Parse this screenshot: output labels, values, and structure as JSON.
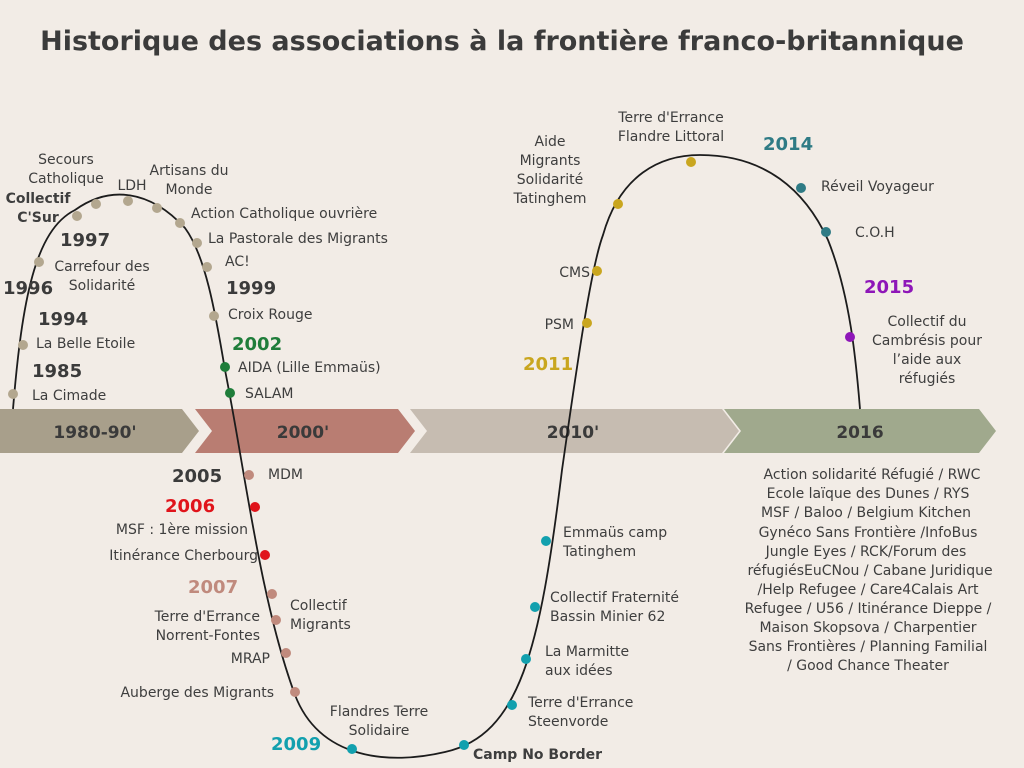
{
  "title": "Historique des associations à la frontière franco-britannique",
  "colors": {
    "bg": "#f2ece6",
    "eighties": "#a89f8b",
    "twothousand": "#b97d72",
    "twentyten": "#c6bcb1",
    "sixteen": "#a0a98d",
    "beige_dot": "#b3a78f",
    "green_dot": "#1f7d3a",
    "pink_dot": "#c08a7d",
    "red_dot": "#e0141b",
    "teal_dot": "#12a0ae",
    "gold_dot": "#c9a61f",
    "blue_dot": "#2f7b85",
    "purple_dot": "#8e16b8"
  },
  "bands": [
    "1980-90'",
    "2000'",
    "2010'",
    "2016"
  ],
  "years": {
    "y1985": "1985",
    "y1994": "1994",
    "y1996": "1996",
    "y1997": "1997",
    "y1999": "1999",
    "y2002": "2002",
    "y2005": "2005",
    "y2006": "2006",
    "y2007": "2007",
    "y2009": "2009",
    "y2011": "2011",
    "y2014": "2014",
    "y2015": "2015"
  },
  "labels": {
    "cimade": "La Cimade",
    "belle_etoile": "La Belle Etoile",
    "carrefour_1": "Carrefour des",
    "carrefour_2": "Solidarité",
    "csur_1": "Collectif",
    "csur_2": "C'Sur",
    "secours_1": "Secours",
    "secours_2": "Catholique",
    "ldh": "LDH",
    "artisans_1": "Artisans du",
    "artisans_2": "Monde",
    "action_catho": "Action Catholique ouvrière",
    "pastorale": "La Pastorale des Migrants",
    "ac": "AC!",
    "croix_rouge": "Croix Rouge",
    "aida": "AIDA (Lille Emmaüs)",
    "salam": "SALAM",
    "mdm": "MDM",
    "msf": "MSF : 1ère mission",
    "itinerance_cherbourg": "Itinérance Cherbourg",
    "terre_norrent_1": "Terre d'Errance",
    "terre_norrent_2": "Norrent-Fontes",
    "collectif_migrants_1": "Collectif",
    "collectif_migrants_2": "Migrants",
    "mrap": "MRAP",
    "auberge": "Auberge des Migrants",
    "flandres_1": "Flandres Terre",
    "flandres_2": "Solidaire",
    "camp_no_border": "Camp No Border",
    "steenvorde_1": "Terre d'Errance",
    "steenvorde_2": "Steenvorde",
    "marmitte_1": "La Marmitte",
    "marmitte_2": "aux idées",
    "fraternite_1": "Collectif Fraternité",
    "fraternite_2": "Bassin Minier 62",
    "emmaus_1": "Emmaüs camp",
    "emmaus_2": "Tatinghem",
    "psm": "PSM",
    "cms": "CMS",
    "aide_1": "Aide",
    "aide_2": "Migrants",
    "aide_3": "Solidarité",
    "aide_4": "Tatinghem",
    "flandre_littoral_1": "Terre d'Errance",
    "flandre_littoral_2": "Flandre Littoral",
    "reveil": "Réveil Voyageur",
    "coh": "C.O.H",
    "cambresis_1": "Collectif du",
    "cambresis_2": "Cambrésis pour",
    "cambresis_3": "l’aide aux",
    "cambresis_4": "réfugiés"
  },
  "list_2016": [
    "Action solidarité Réfugié / RWC",
    "Ecole laïque des Dunes / RYS",
    "MSF / Baloo / Belgium Kitchen",
    "Gynéco Sans Frontière /InfoBus",
    "Jungle Eyes / RCK/Forum des",
    "réfugiésEuCNou / Cabane Juridique",
    "/Help Refugee / Care4Calais Art",
    "Refugee / U56 / Itinérance Dieppe /",
    "Maison Skopsova / Charpentier",
    "Sans Frontières / Planning Familial",
    "/ Good Chance Theater"
  ]
}
